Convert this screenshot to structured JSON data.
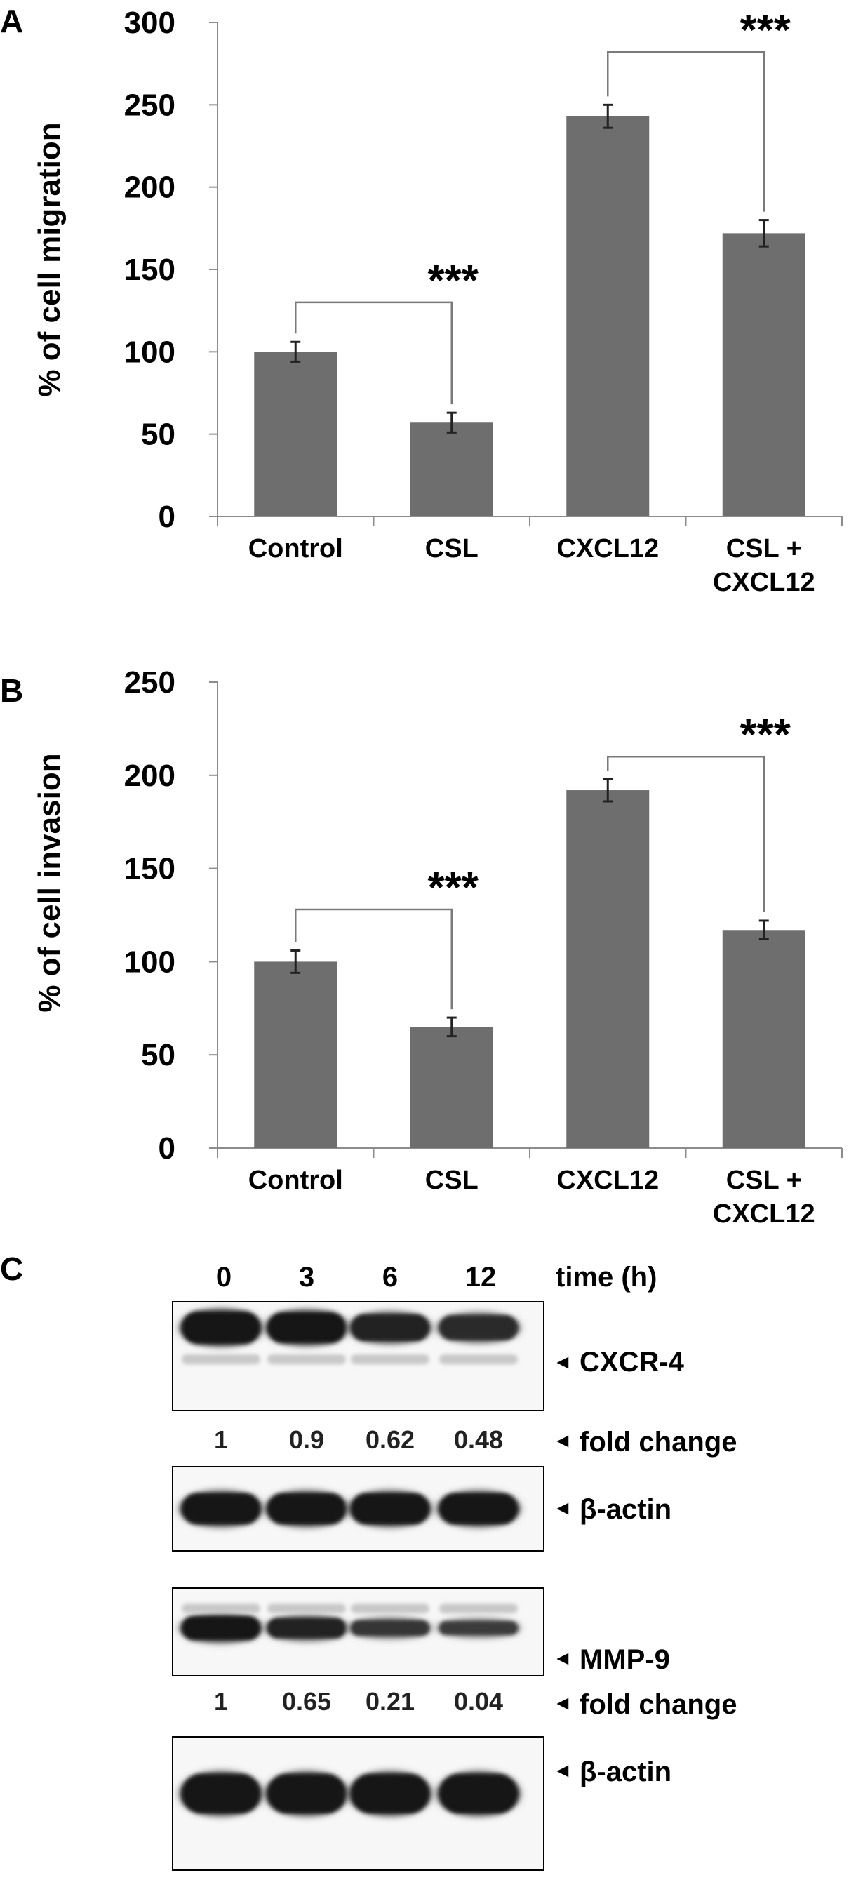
{
  "chart_data": [
    {
      "panel_label": "A",
      "type": "bar",
      "ylabel": "% of cell migration",
      "ylim": [
        0,
        300
      ],
      "yticks": [
        "0",
        "50",
        "100",
        "150",
        "200",
        "250",
        "300"
      ],
      "categories": [
        [
          "Control"
        ],
        [
          "CSL"
        ],
        [
          "CXCL12"
        ],
        [
          "CSL +",
          "CXCL12"
        ]
      ],
      "values": [
        100,
        57,
        243,
        172
      ],
      "errors": [
        6,
        6,
        7,
        8
      ],
      "bar_color": "#6e6e6e",
      "significance": [
        {
          "from": 0,
          "to": 1,
          "label": "***",
          "y": 130
        },
        {
          "from": 2,
          "to": 3,
          "label": "***",
          "y": 282
        }
      ]
    },
    {
      "panel_label": "B",
      "type": "bar",
      "ylabel": "% of cell invasion",
      "ylim": [
        0,
        250
      ],
      "yticks": [
        "0",
        "50",
        "100",
        "150",
        "200",
        "250"
      ],
      "categories": [
        [
          "Control"
        ],
        [
          "CSL"
        ],
        [
          "CXCL12"
        ],
        [
          "CSL +",
          "CXCL12"
        ]
      ],
      "values": [
        100,
        65,
        192,
        117
      ],
      "errors": [
        6,
        5,
        6,
        5
      ],
      "bar_color": "#6e6e6e",
      "significance": [
        {
          "from": 0,
          "to": 1,
          "label": "***",
          "y": 128
        },
        {
          "from": 2,
          "to": 3,
          "label": "***",
          "y": 210
        }
      ]
    }
  ],
  "blot": {
    "panel_label": "C",
    "time_label": "time (h)",
    "times": [
      "0",
      "3",
      "6",
      "12"
    ],
    "cxcr4_label": "CXCR-4",
    "cxcr4_intensity": [
      1,
      0.9,
      0.62,
      0.48
    ],
    "cxcr4_fold": [
      "1",
      "0.9",
      "0.62",
      "0.48"
    ],
    "fold_label": "fold change",
    "actin_label": "β-actin",
    "mmp9_label": "MMP-9",
    "mmp9_intensity": [
      1,
      0.65,
      0.21,
      0.04
    ],
    "mmp9_fold": [
      "1",
      "0.65",
      "0.21",
      "0.04"
    ]
  }
}
